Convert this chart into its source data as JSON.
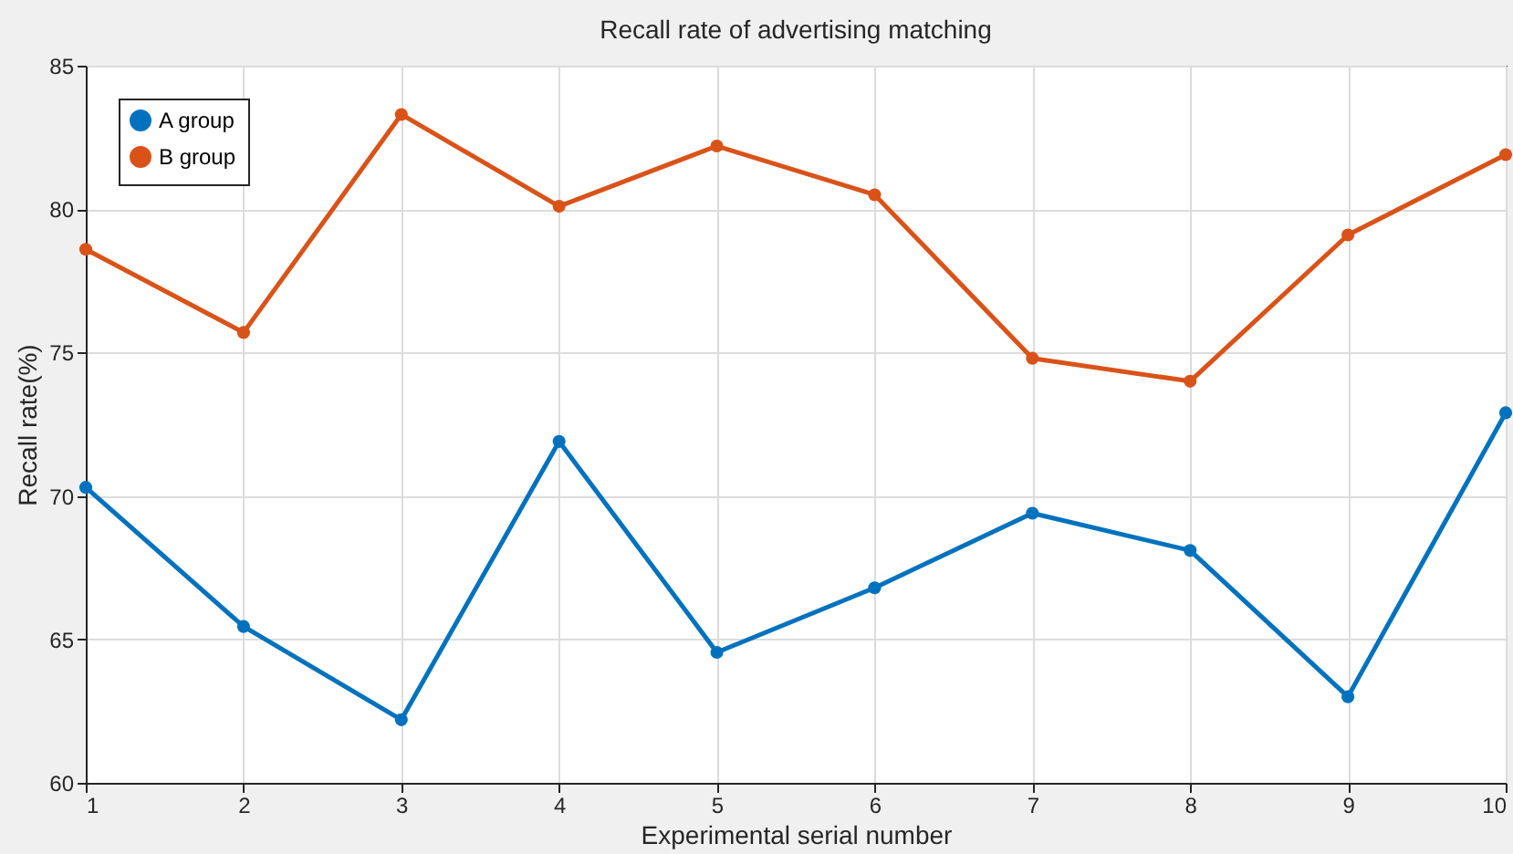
{
  "chart_data": {
    "type": "line",
    "title": "Recall rate of advertising matching",
    "xlabel": "Experimental serial number",
    "ylabel": "Recall rate(%)",
    "x": [
      1,
      2,
      3,
      4,
      5,
      6,
      7,
      8,
      9,
      10
    ],
    "series": [
      {
        "name": "A group",
        "color": "#0072bd",
        "values": [
          70.3,
          65.45,
          62.2,
          71.9,
          64.55,
          66.8,
          69.4,
          68.1,
          63.0,
          72.9
        ]
      },
      {
        "name": "B group",
        "color": "#d95319",
        "values": [
          78.6,
          75.7,
          83.3,
          80.1,
          82.2,
          80.5,
          74.8,
          74.0,
          79.1,
          81.9
        ]
      }
    ],
    "xlim": [
      1,
      10
    ],
    "xticks": [
      1,
      2,
      3,
      4,
      5,
      6,
      7,
      8,
      9,
      10
    ],
    "ylim": [
      60,
      85
    ],
    "yticks": [
      60,
      65,
      70,
      75,
      80,
      85
    ],
    "grid": true,
    "legend": "top left",
    "marker": "circle",
    "line_style": "solid"
  }
}
